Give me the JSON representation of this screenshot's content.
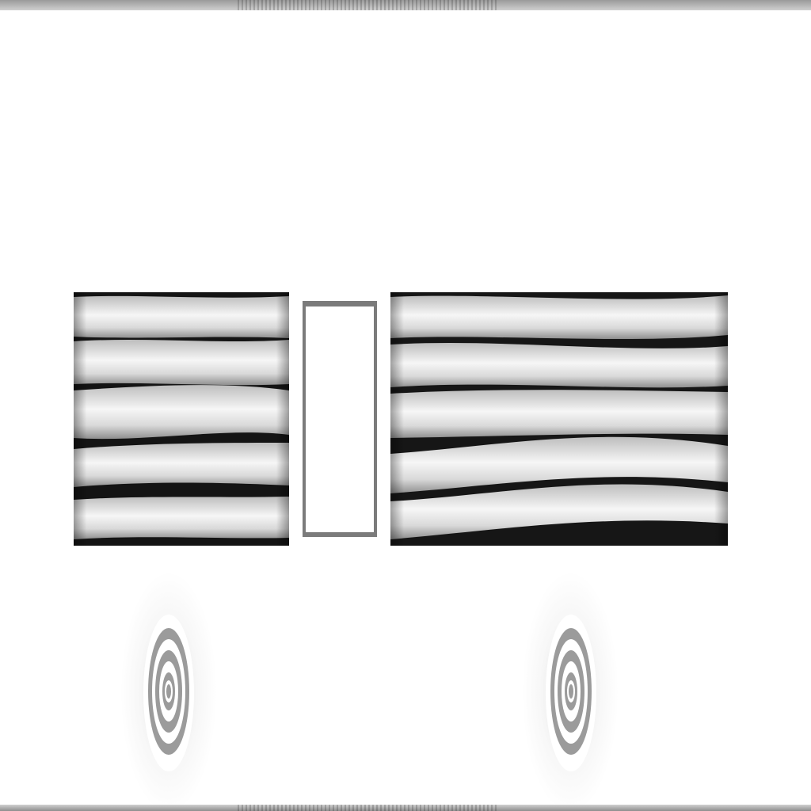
{
  "scene": {
    "description_free": true,
    "colors": {
      "background": "#ffffff",
      "panel_dark": "#111111",
      "slat_light": "#f2f2f2",
      "slat_mid": "#c9c9c9",
      "slot_frame": "#7b7b7b",
      "ring_gray": "#9b9b9b"
    },
    "panels": [
      {
        "id": "left",
        "slat_count": 5
      },
      {
        "id": "right",
        "slat_count": 5
      }
    ],
    "targets": [
      {
        "id": "left",
        "ring_count": 4
      },
      {
        "id": "right",
        "ring_count": 4
      }
    ]
  }
}
